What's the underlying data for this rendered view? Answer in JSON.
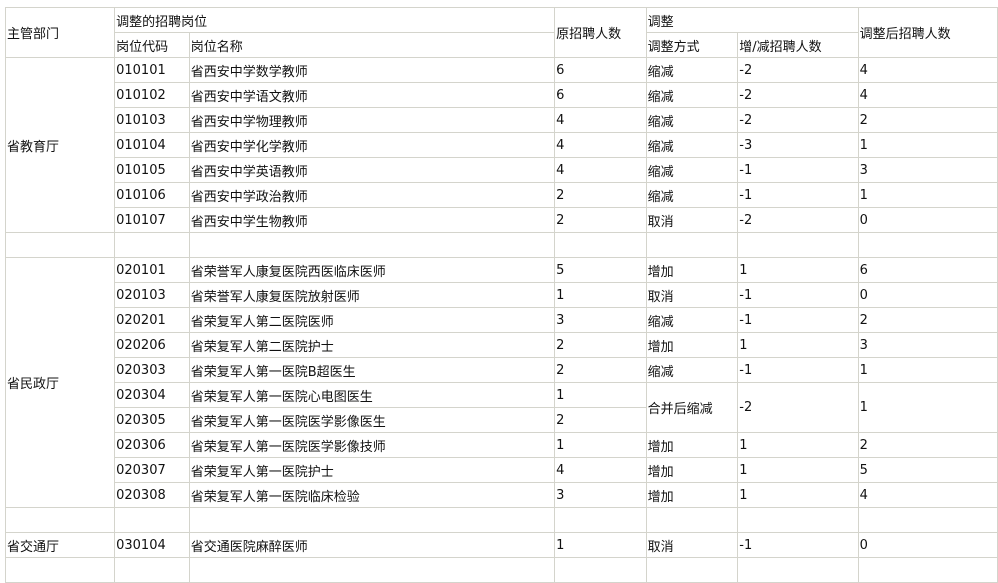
{
  "header": {
    "dept": "主管部门",
    "positions_group": "调整的招聘岗位",
    "code": "岗位代码",
    "name": "岗位名称",
    "original": "原招聘人数",
    "adjust_group": "调整",
    "method": "调整方式",
    "delta": "增/减招聘人数",
    "after": "调整后招聘人数"
  },
  "groups": [
    {
      "dept": "省教育厅",
      "rows": [
        {
          "code": "010101",
          "name": "省西安中学数学教师",
          "original": "6",
          "method": "缩减",
          "delta": "-2",
          "after": "4"
        },
        {
          "code": "010102",
          "name": "省西安中学语文教师",
          "original": "6",
          "method": "缩减",
          "delta": "-2",
          "after": "4"
        },
        {
          "code": "010103",
          "name": "省西安中学物理教师",
          "original": "4",
          "method": "缩减",
          "delta": "-2",
          "after": "2"
        },
        {
          "code": "010104",
          "name": "省西安中学化学教师",
          "original": "4",
          "method": "缩减",
          "delta": "-3",
          "after": "1"
        },
        {
          "code": "010105",
          "name": "省西安中学英语教师",
          "original": "4",
          "method": "缩减",
          "delta": "-1",
          "after": "3"
        },
        {
          "code": "010106",
          "name": "省西安中学政治教师",
          "original": "2",
          "method": "缩减",
          "delta": "-1",
          "after": "1"
        },
        {
          "code": "010107",
          "name": "省西安中学生物教师",
          "original": "2",
          "method": "取消",
          "delta": "-2",
          "after": "0"
        }
      ]
    },
    {
      "dept": "省民政厅",
      "rows": [
        {
          "code": "020101",
          "name": "省荣誉军人康复医院西医临床医师",
          "original": "5",
          "method": "增加",
          "delta": "1",
          "after": "6"
        },
        {
          "code": "020103",
          "name": "省荣誉军人康复医院放射医师",
          "original": "1",
          "method": "取消",
          "delta": "-1",
          "after": "0"
        },
        {
          "code": "020201",
          "name": "省荣复军人第二医院医师",
          "original": "3",
          "method": "缩减",
          "delta": "-1",
          "after": "2"
        },
        {
          "code": "020206",
          "name": "省荣复军人第二医院护士",
          "original": "2",
          "method": "增加",
          "delta": "1",
          "after": "3"
        },
        {
          "code": "020303",
          "name": "省荣复军人第一医院B超医生",
          "original": "2",
          "method": "缩减",
          "delta": "-1",
          "after": "1"
        },
        {
          "code": "020304",
          "name": "省荣复军人第一医院心电图医生",
          "original": "1",
          "method": "合并后缩减",
          "delta": "-2",
          "after": "1"
        },
        {
          "code": "020305",
          "name": "省荣复军人第一医院医学影像医生",
          "original": "2"
        },
        {
          "code": "020306",
          "name": "省荣复军人第一医院医学影像技师",
          "original": "1",
          "method": "增加",
          "delta": "1",
          "after": "2"
        },
        {
          "code": "020307",
          "name": "省荣复军人第一医院护士",
          "original": "4",
          "method": "增加",
          "delta": "1",
          "after": "5"
        },
        {
          "code": "020308",
          "name": "省荣复军人第一医院临床检验",
          "original": "3",
          "method": "增加",
          "delta": "1",
          "after": "4"
        }
      ]
    },
    {
      "dept": "省交通厅",
      "rows": [
        {
          "code": "030104",
          "name": "省交通医院麻醉医师",
          "original": "1",
          "method": "取消",
          "delta": "-1",
          "after": "0"
        }
      ]
    }
  ]
}
